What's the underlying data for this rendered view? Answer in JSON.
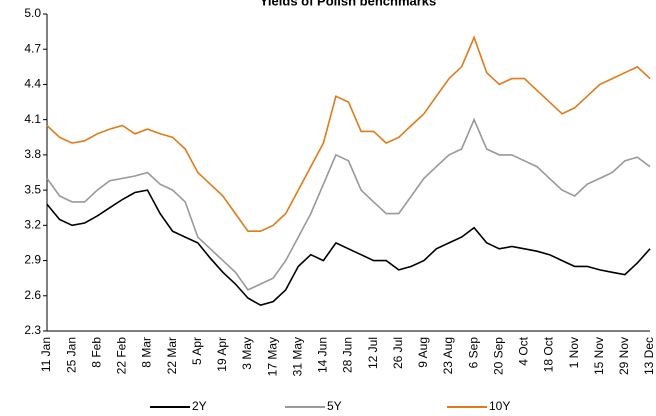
{
  "chart_data": {
    "type": "line",
    "title": "Yields of Polish benchmarks",
    "categories": [
      "11 Jan",
      null,
      "25 Jan",
      null,
      "8 Feb",
      null,
      "22 Feb",
      null,
      "8 Mar",
      null,
      "22 Mar",
      null,
      "5 Apr",
      null,
      "19 Apr",
      null,
      "3 May",
      null,
      "17 May",
      null,
      "31 May",
      null,
      "14 Jun",
      null,
      "28 Jun",
      null,
      "12 Jul",
      null,
      "26 Jul",
      null,
      "9 Aug",
      null,
      "23 Aug",
      null,
      "6 Sep",
      null,
      "20 Sep",
      null,
      "4 Oct",
      null,
      "18 Oct",
      null,
      "1 Nov",
      null,
      "15 Nov",
      null,
      "29 Nov",
      null,
      "13 Dec"
    ],
    "series": [
      {
        "name": "2Y",
        "color": "#000000",
        "values": [
          3.38,
          3.25,
          3.2,
          3.22,
          3.28,
          3.35,
          3.42,
          3.48,
          3.5,
          3.3,
          3.15,
          3.1,
          3.05,
          2.92,
          2.8,
          2.7,
          2.58,
          2.52,
          2.55,
          2.65,
          2.85,
          2.95,
          2.9,
          3.05,
          3.0,
          2.95,
          2.9,
          2.9,
          2.82,
          2.85,
          2.9,
          3.0,
          3.05,
          3.1,
          3.18,
          3.05,
          3.0,
          3.02,
          3.0,
          2.98,
          2.95,
          2.9,
          2.85,
          2.85,
          2.82,
          2.8,
          2.78,
          2.88,
          3.0
        ]
      },
      {
        "name": "5Y",
        "color": "#999999",
        "values": [
          3.6,
          3.45,
          3.4,
          3.4,
          3.5,
          3.58,
          3.6,
          3.62,
          3.65,
          3.55,
          3.5,
          3.4,
          3.1,
          3.0,
          2.9,
          2.8,
          2.65,
          2.7,
          2.75,
          2.9,
          3.1,
          3.3,
          3.55,
          3.8,
          3.75,
          3.5,
          3.4,
          3.3,
          3.3,
          3.45,
          3.6,
          3.7,
          3.8,
          3.85,
          4.1,
          3.85,
          3.8,
          3.8,
          3.75,
          3.7,
          3.6,
          3.5,
          3.45,
          3.55,
          3.6,
          3.65,
          3.75,
          3.78,
          3.7
        ]
      },
      {
        "name": "10Y",
        "color": "#e07b1a",
        "values": [
          4.05,
          3.95,
          3.9,
          3.92,
          3.98,
          4.02,
          4.05,
          3.98,
          4.02,
          3.98,
          3.95,
          3.85,
          3.65,
          3.55,
          3.45,
          3.3,
          3.15,
          3.15,
          3.2,
          3.3,
          3.5,
          3.7,
          3.9,
          4.3,
          4.25,
          4.0,
          4.0,
          3.9,
          3.95,
          4.05,
          4.15,
          4.3,
          4.45,
          4.55,
          4.8,
          4.5,
          4.4,
          4.45,
          4.45,
          4.35,
          4.25,
          4.15,
          4.2,
          4.3,
          4.4,
          4.45,
          4.5,
          4.55,
          4.45
        ]
      }
    ],
    "ylim": [
      2.3,
      5.0
    ],
    "yticks": [
      2.3,
      2.6,
      2.9,
      3.2,
      3.5,
      3.8,
      4.1,
      4.4,
      4.7,
      {
        "value": 5,
        "label": "5.0"
      }
    ],
    "grid": false
  }
}
